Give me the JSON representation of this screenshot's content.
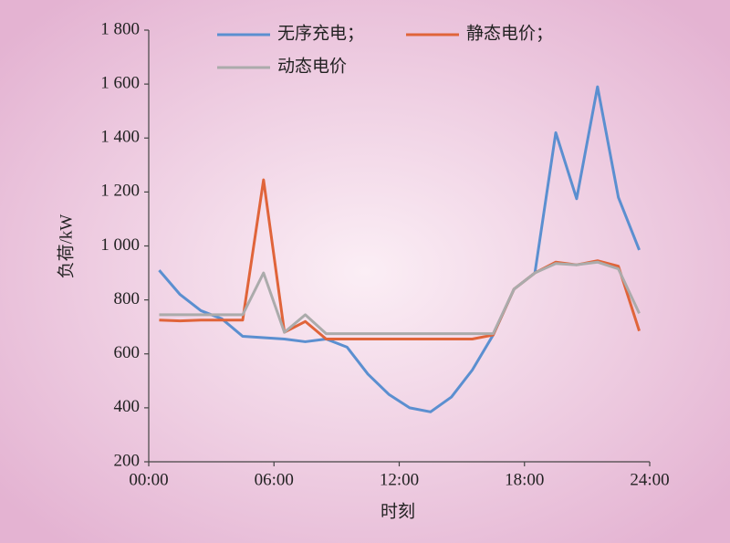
{
  "chart_data": {
    "type": "line",
    "x_label": "时刻",
    "y_label": "负荷/kW",
    "x": [
      0.5,
      1.5,
      2.5,
      3.5,
      4.5,
      5.5,
      6.5,
      7.5,
      8.5,
      9.5,
      10.5,
      11.5,
      12.5,
      13.5,
      14.5,
      15.5,
      16.5,
      17.5,
      18.5,
      19.5,
      20.5,
      21.5,
      22.5,
      23.5
    ],
    "series": [
      {
        "name": "无序充电；",
        "color": "#5b8fd0",
        "values": [
          910,
          820,
          760,
          730,
          665,
          660,
          655,
          645,
          655,
          625,
          525,
          450,
          400,
          385,
          440,
          540,
          670,
          840,
          900,
          1420,
          1175,
          1590,
          1180,
          985
        ]
      },
      {
        "name": "静态电价；",
        "color": "#e0643a",
        "values": [
          725,
          722,
          725,
          725,
          725,
          1245,
          680,
          720,
          655,
          655,
          655,
          655,
          655,
          655,
          655,
          655,
          670,
          840,
          900,
          940,
          930,
          945,
          925,
          685
        ]
      },
      {
        "name": "动态电价",
        "color": "#ababab",
        "values": [
          745,
          745,
          745,
          745,
          745,
          900,
          680,
          745,
          675,
          675,
          675,
          675,
          675,
          675,
          675,
          675,
          675,
          840,
          900,
          935,
          930,
          940,
          915,
          750
        ]
      }
    ],
    "xlim": [
      0,
      24
    ],
    "xticks": [
      {
        "value": 0,
        "label": "00:00"
      },
      {
        "value": 6,
        "label": "06:00"
      },
      {
        "value": 12,
        "label": "12:00"
      },
      {
        "value": 18,
        "label": "18:00"
      },
      {
        "value": 24,
        "label": "24:00"
      }
    ],
    "ylim": [
      200,
      1800
    ],
    "yticks": [
      200,
      400,
      600,
      800,
      {
        "value": 1000,
        "label": "1 000"
      },
      {
        "value": 1200,
        "label": "1 200"
      },
      {
        "value": 1400,
        "label": "1 400"
      },
      {
        "value": 1600,
        "label": "1 600"
      },
      {
        "value": 1800,
        "label": "1 800"
      }
    ],
    "grid": false
  }
}
